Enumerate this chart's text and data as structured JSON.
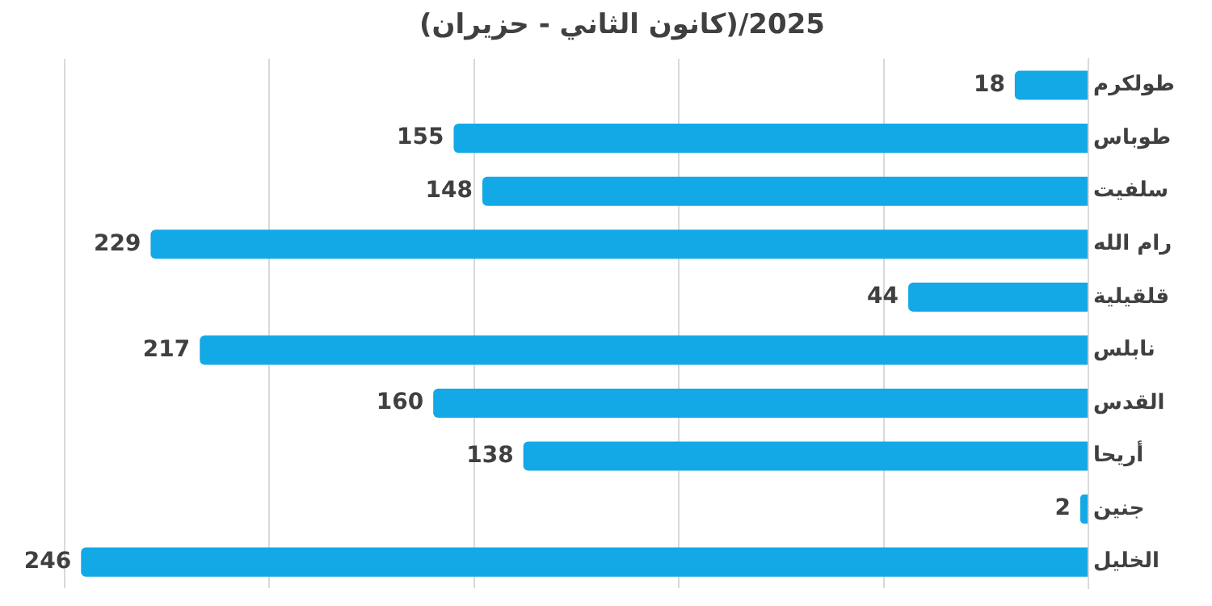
{
  "chart_data": {
    "type": "bar",
    "orientation": "horizontal",
    "title": "(كانون الثاني - حزيران)/2025",
    "categories": [
      "طولكرم",
      "طوباس",
      "سلفيت",
      "رام الله",
      "قلقيلية",
      "نابلس",
      "القدس",
      "أريحا",
      "جنين",
      "الخليل"
    ],
    "values": [
      18,
      155,
      148,
      229,
      44,
      217,
      160,
      138,
      2,
      246
    ],
    "color": "#12a9e6",
    "xlim": [
      250,
      0
    ],
    "xticks": [
      {
        "value": 0,
        "label": null
      },
      {
        "value": 50,
        "label": null
      },
      {
        "value": 100,
        "label": null
      },
      {
        "value": 150,
        "label": null
      },
      {
        "value": 200,
        "label": null
      },
      {
        "value": 250,
        "label": null
      }
    ],
    "grid": "x",
    "tick_labels": "y",
    "data_labels": true,
    "legend": false
  }
}
